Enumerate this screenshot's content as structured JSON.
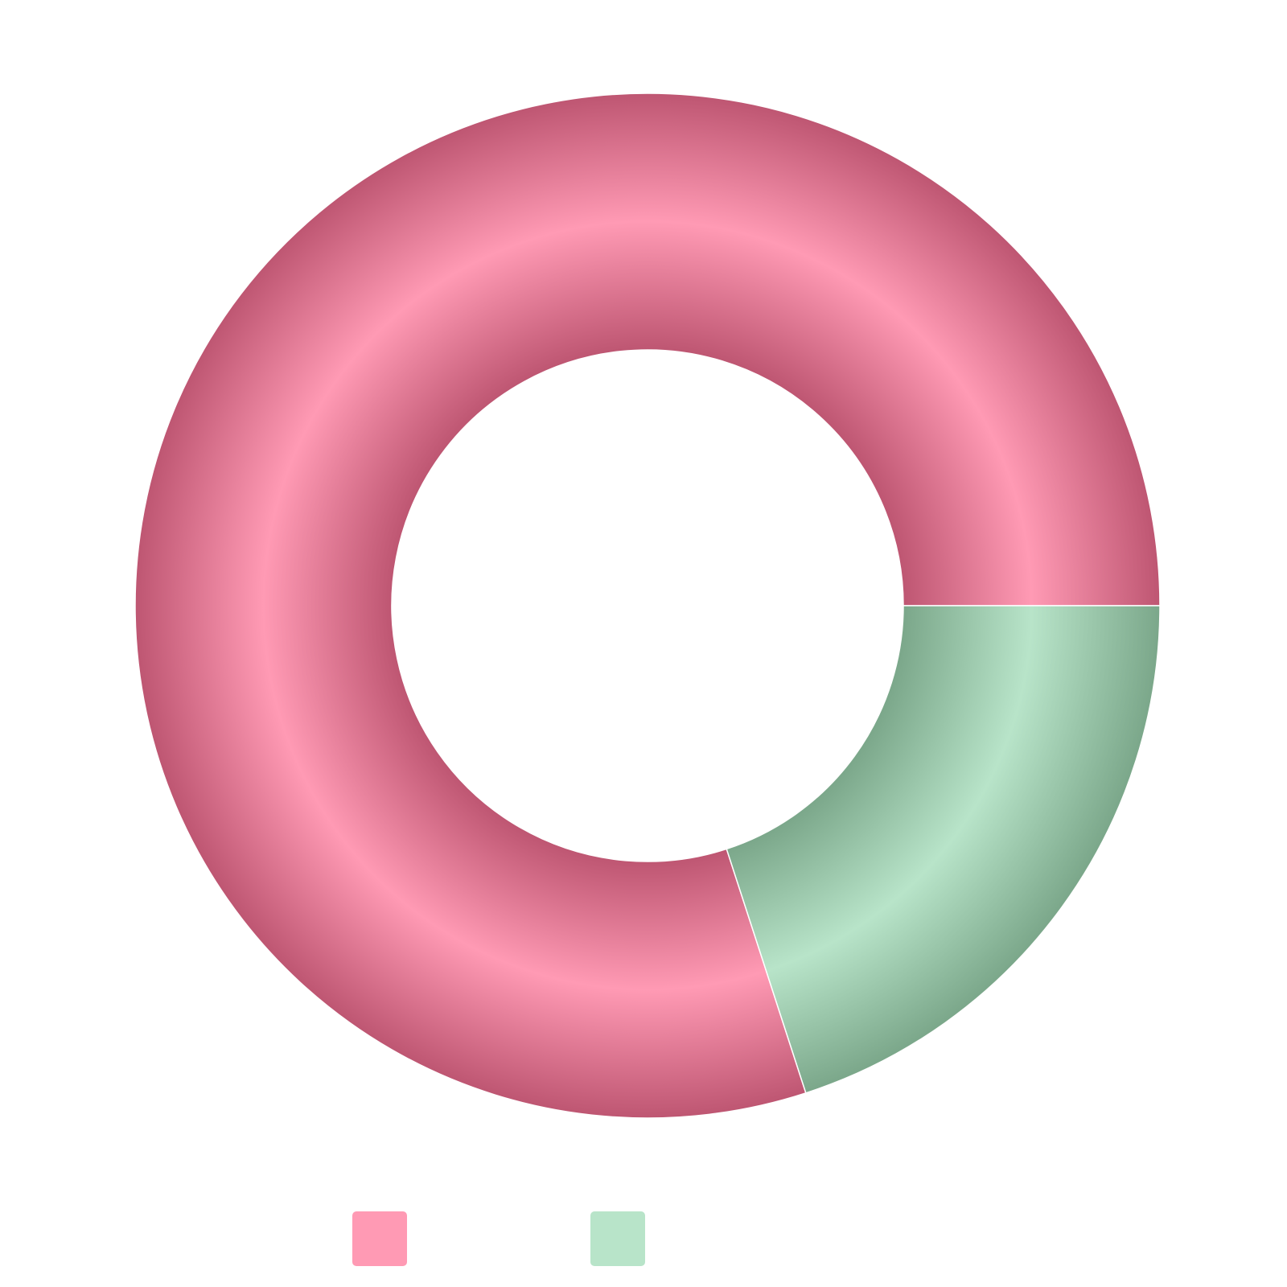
{
  "chart_data": {
    "type": "pie",
    "variant": "donut",
    "title": "",
    "series": [
      {
        "values": [
          80,
          20
        ],
        "colors": [
          "#ff9ab4",
          "#b8e4c9"
        ],
        "shade_colors": [
          "#be5672",
          "#7ba78a"
        ]
      }
    ],
    "categories": [
      "",
      ""
    ],
    "legend": {
      "position": "bottom-left",
      "items": [
        {
          "label": "",
          "color": "#ff9ab4"
        },
        {
          "label": "",
          "color": "#b8e4c9"
        }
      ]
    },
    "start_angle_deg": 0,
    "direction": "counterclockwise",
    "data_labels": false,
    "grid": false
  }
}
